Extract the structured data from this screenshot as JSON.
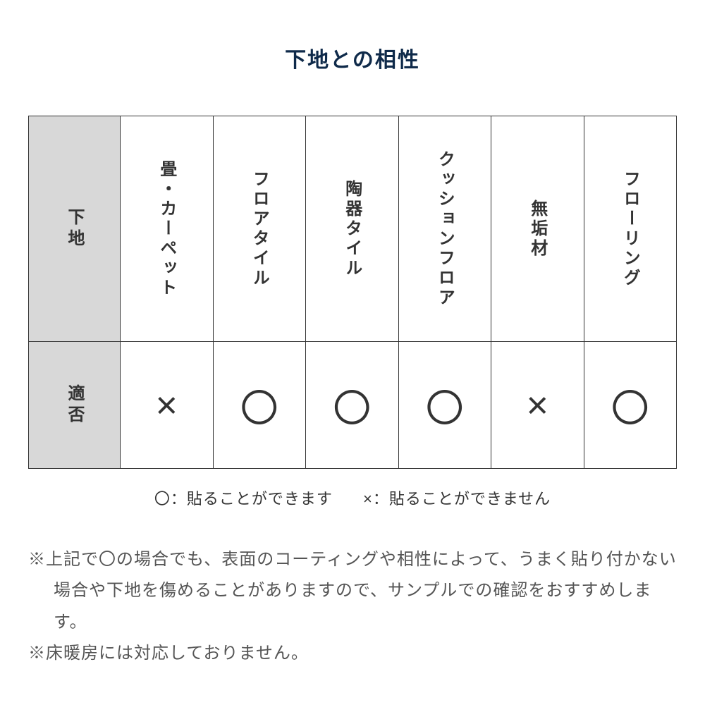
{
  "title": "下地との相性",
  "table": {
    "row_headers": [
      "下地",
      "適否"
    ],
    "columns": [
      {
        "label": "畳・カーペット",
        "mark": "×"
      },
      {
        "label": "フロアタイル",
        "mark": "〇"
      },
      {
        "label": "陶器タイル",
        "mark": "〇"
      },
      {
        "label": "クッションフロア",
        "mark": "〇"
      },
      {
        "label": "無垢材",
        "mark": "×"
      },
      {
        "label": "フローリング",
        "mark": "〇"
      }
    ]
  },
  "legend": {
    "ok": "〇：貼ることができます",
    "ng": "×：貼ることができません"
  },
  "notes": [
    "※上記で〇の場合でも、表面のコーティングや相性によって、うまく貼り付かない場合や下地を傷めることがありますので、サンプルでの確認をおすすめします。",
    "※床暖房には対応しておりません。"
  ],
  "colors": {
    "title": "#0f2a4a",
    "border": "#333333",
    "header_bg": "#d8d8d8",
    "text": "#333333",
    "note_text": "#555555",
    "background": "#ffffff"
  }
}
